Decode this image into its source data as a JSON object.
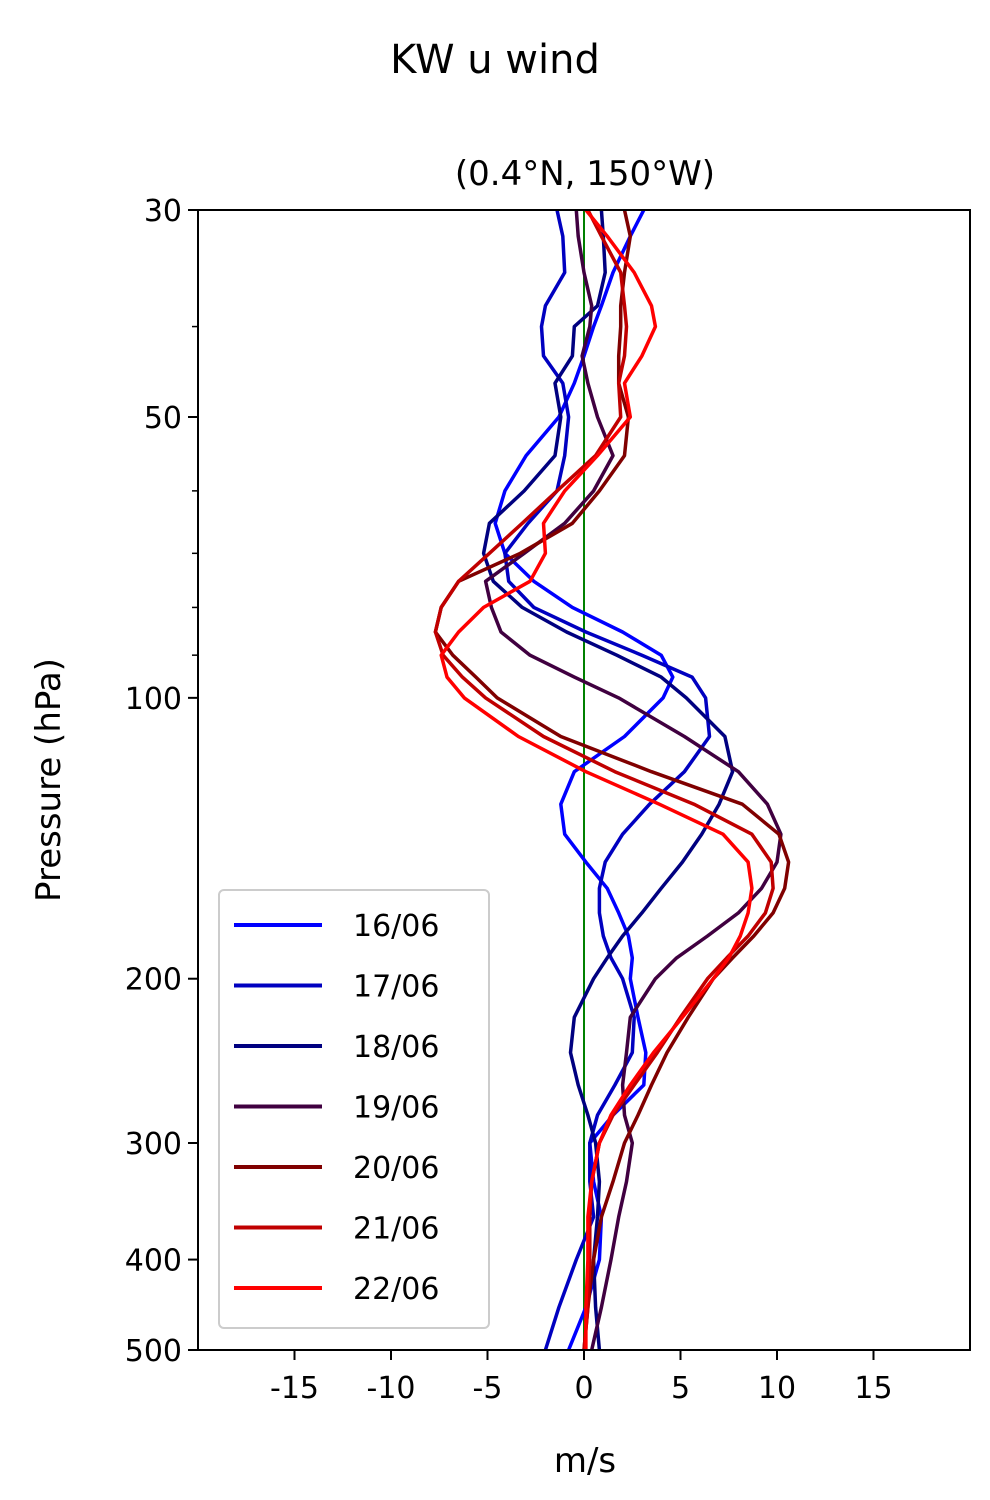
{
  "figure": {
    "suptitle": "KW u wind"
  },
  "chart_data": {
    "type": "line",
    "title": "(0.4°N, 150°W)",
    "xlabel": "m/s",
    "ylabel": "Pressure (hPa)",
    "xlim": [
      -20,
      20
    ],
    "ylim": [
      500,
      30
    ],
    "y_scale": "log",
    "x_ticks": [
      -15,
      -10,
      -5,
      0,
      5,
      10,
      15
    ],
    "x_tick_labels": [
      "-15",
      "-10",
      "-5",
      "0",
      "5",
      "10",
      "15"
    ],
    "y_ticks": [
      30,
      50,
      100,
      200,
      300,
      400,
      500
    ],
    "y_tick_labels": [
      "30",
      "50",
      "100",
      "200",
      "300",
      "400",
      "500"
    ],
    "y_minor_ticks": [
      40,
      60,
      70,
      80,
      90
    ],
    "zero_line": {
      "x": 0,
      "color": "#008000"
    },
    "grid": false,
    "legend_position": "lower-left",
    "pressure": [
      30,
      32,
      35,
      38,
      40,
      43,
      46,
      50,
      55,
      60,
      65,
      70,
      75,
      80,
      85,
      90,
      95,
      100,
      110,
      120,
      130,
      140,
      150,
      160,
      170,
      180,
      190,
      200,
      220,
      240,
      260,
      280,
      300,
      330,
      360,
      400,
      450,
      500
    ],
    "series": [
      {
        "name": "16/06",
        "color": "#0000ff",
        "values": [
          3.1,
          2.4,
          1.5,
          0.9,
          0.5,
          0.0,
          -0.5,
          -1.3,
          -3.0,
          -4.1,
          -4.6,
          -4.1,
          -2.6,
          -0.6,
          2.0,
          4.0,
          4.6,
          4.1,
          2.1,
          -0.5,
          -1.2,
          -1.0,
          0.1,
          1.2,
          1.8,
          2.3,
          2.5,
          2.4,
          2.8,
          3.2,
          3.1,
          1.5,
          0.3,
          0.5,
          0.9,
          0.8,
          0.1,
          -0.8
        ]
      },
      {
        "name": "17/06",
        "color": "#0000c0",
        "values": [
          -1.4,
          -1.1,
          -1.0,
          -2.0,
          -2.2,
          -2.1,
          -1.1,
          -0.8,
          -1.0,
          -1.4,
          -2.9,
          -4.1,
          -3.9,
          -2.6,
          0.1,
          3.0,
          5.6,
          6.3,
          6.5,
          5.2,
          3.4,
          2.0,
          1.1,
          0.8,
          0.8,
          1.0,
          1.4,
          2.0,
          2.6,
          2.5,
          1.6,
          0.7,
          0.3,
          0.3,
          0.5,
          -0.4,
          -1.3,
          -2.0
        ]
      },
      {
        "name": "18/06",
        "color": "#000080",
        "values": [
          0.9,
          1.0,
          1.1,
          0.7,
          -0.5,
          -0.6,
          -1.5,
          -1.2,
          -1.5,
          -3.1,
          -4.9,
          -5.2,
          -4.7,
          -3.2,
          -0.9,
          1.7,
          4.0,
          5.3,
          7.3,
          7.7,
          7.0,
          6.1,
          5.1,
          4.0,
          3.0,
          2.0,
          1.2,
          0.5,
          -0.5,
          -0.7,
          -0.3,
          0.2,
          0.6,
          0.8,
          0.7,
          0.5,
          0.6,
          0.8
        ]
      },
      {
        "name": "19/06",
        "color": "#400040",
        "values": [
          -0.4,
          -0.3,
          0.0,
          0.4,
          0.3,
          -0.1,
          0.2,
          0.7,
          1.5,
          0.5,
          -1.0,
          -3.1,
          -5.1,
          -4.8,
          -4.3,
          -2.8,
          -0.5,
          1.8,
          5.2,
          8.0,
          9.5,
          10.2,
          10.0,
          9.2,
          8.0,
          6.4,
          4.8,
          3.7,
          2.4,
          2.2,
          2.0,
          2.1,
          2.5,
          2.2,
          1.8,
          1.4,
          0.9,
          0.4
        ]
      },
      {
        "name": "20/06",
        "color": "#800000",
        "values": [
          2.1,
          2.4,
          2.1,
          1.9,
          1.9,
          1.8,
          1.8,
          2.3,
          2.1,
          0.8,
          -0.6,
          -3.3,
          -6.5,
          -7.4,
          -7.7,
          -6.8,
          -5.6,
          -4.5,
          -1.2,
          3.5,
          8.2,
          10.1,
          10.6,
          10.4,
          9.8,
          8.8,
          7.7,
          6.7,
          5.4,
          4.3,
          3.5,
          2.8,
          2.1,
          1.5,
          0.9,
          0.5,
          0.2,
          0.0
        ]
      },
      {
        "name": "21/06",
        "color": "#c00000",
        "values": [
          0.2,
          0.9,
          1.9,
          2.1,
          2.2,
          2.1,
          1.8,
          1.9,
          0.6,
          -1.4,
          -3.2,
          -4.9,
          -6.5,
          -7.4,
          -7.7,
          -7.3,
          -6.3,
          -5.1,
          -2.1,
          1.6,
          5.7,
          8.7,
          9.7,
          9.8,
          9.4,
          8.5,
          7.4,
          6.4,
          5.0,
          3.8,
          2.6,
          1.5,
          0.8,
          0.4,
          0.3,
          0.3,
          0.2,
          0.0
        ]
      },
      {
        "name": "22/06",
        "color": "#ff0000",
        "values": [
          0.1,
          1.2,
          2.6,
          3.5,
          3.7,
          3.0,
          2.1,
          2.4,
          0.7,
          -1.0,
          -2.1,
          -2.0,
          -2.8,
          -5.2,
          -6.5,
          -7.4,
          -7.1,
          -6.2,
          -3.4,
          0.1,
          3.9,
          7.2,
          8.5,
          8.7,
          8.5,
          8.1,
          7.5,
          6.7,
          5.1,
          3.6,
          2.4,
          1.4,
          0.8,
          0.4,
          0.2,
          0.2,
          0.1,
          0.1
        ]
      }
    ]
  }
}
